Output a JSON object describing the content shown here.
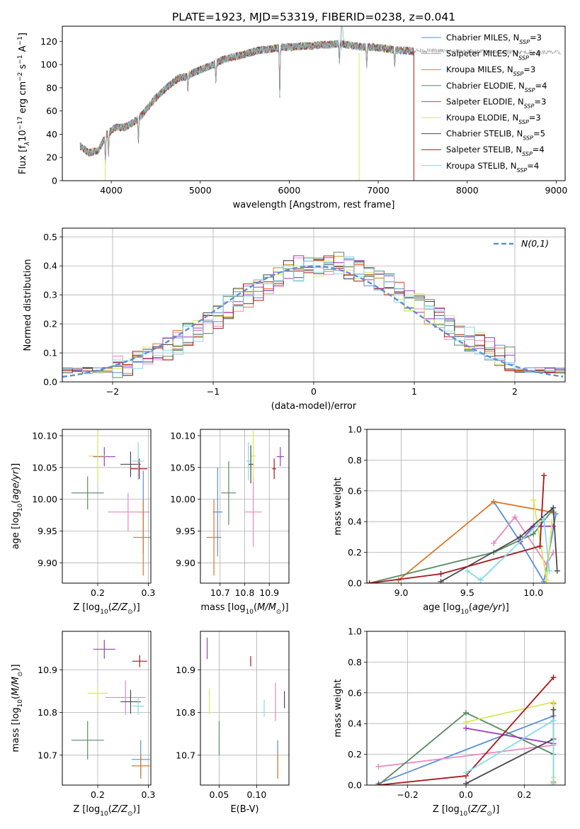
{
  "figure_title": "PLATE=1923, MJD=53319, FIBERID=0238, z=0.041",
  "colors": {
    "Chabrier MILES": "#5b8fd6",
    "Salpeter MILES": "#e889c0",
    "Kroupa MILES": "#d9782a",
    "Chabrier ELODIE": "#5a8a64",
    "Salpeter ELODIE": "#9b3dc0",
    "Kroupa ELODIE": "#d7e85a",
    "Chabrier STELIB": "#4a4a4a",
    "Salpeter STELIB": "#a8181c",
    "Kroupa STELIB": "#86dbe6"
  },
  "legend_models": [
    {
      "key": "Chabrier MILES",
      "label": "Chabrier MILES, N",
      "nssp": "=3"
    },
    {
      "key": "Salpeter MILES",
      "label": "Salpeter MILES, N",
      "nssp": "=4"
    },
    {
      "key": "Kroupa MILES",
      "label": "Kroupa MILES, N",
      "nssp": "=3"
    },
    {
      "key": "Chabrier ELODIE",
      "label": "Chabrier ELODIE, N",
      "nssp": "=4"
    },
    {
      "key": "Salpeter ELODIE",
      "label": "Salpeter ELODIE, N",
      "nssp": "=3"
    },
    {
      "key": "Kroupa ELODIE",
      "label": "Kroupa ELODIE, N",
      "nssp": "=3"
    },
    {
      "key": "Chabrier STELIB",
      "label": "Chabrier STELIB, N",
      "nssp": "=5"
    },
    {
      "key": "Salpeter STELIB",
      "label": "Salpeter STELIB, N",
      "nssp": "=4"
    },
    {
      "key": "Kroupa STELIB",
      "label": "Kroupa STELIB, N",
      "nssp": "=4"
    }
  ],
  "chart_data": [
    {
      "id": "spectrum",
      "type": "line",
      "xlabel": "wavelength [Angstrom, rest frame]",
      "ylabel": "Flux [fλ10⁻¹⁷ erg cm⁻² s⁻¹ A⁻¹]",
      "xlim": [
        3450,
        9100
      ],
      "ylim": [
        0,
        133
      ],
      "xticks": [
        4000,
        5000,
        6000,
        7000,
        8000,
        9000
      ],
      "yticks": [
        0,
        20,
        40,
        60,
        80,
        100,
        120
      ],
      "grid": false,
      "legend": "upper right",
      "continuum": [
        [
          3650,
          30
        ],
        [
          3750,
          24
        ],
        [
          3850,
          26
        ],
        [
          3950,
          40
        ],
        [
          4050,
          46
        ],
        [
          4150,
          46
        ],
        [
          4250,
          50
        ],
        [
          4350,
          57
        ],
        [
          4450,
          67
        ],
        [
          4550,
          75
        ],
        [
          4650,
          82
        ],
        [
          4750,
          88
        ],
        [
          4850,
          90
        ],
        [
          4950,
          94
        ],
        [
          5050,
          97
        ],
        [
          5150,
          100
        ],
        [
          5250,
          104
        ],
        [
          5350,
          106
        ],
        [
          5450,
          108
        ],
        [
          5550,
          110
        ],
        [
          5650,
          112
        ],
        [
          5750,
          113
        ],
        [
          5850,
          114
        ],
        [
          5950,
          115
        ],
        [
          6050,
          115
        ],
        [
          6150,
          116
        ],
        [
          6250,
          116
        ],
        [
          6350,
          117
        ],
        [
          6450,
          117
        ],
        [
          6550,
          118
        ],
        [
          6650,
          117
        ],
        [
          6750,
          116
        ],
        [
          6850,
          115
        ],
        [
          6950,
          115
        ],
        [
          7050,
          114
        ],
        [
          7150,
          113
        ],
        [
          7250,
          112
        ],
        [
          7350,
          112
        ],
        [
          7400,
          111
        ]
      ],
      "absorption_features": [
        {
          "x": 3934,
          "y": 16
        },
        {
          "x": 3969,
          "y": 22
        },
        {
          "x": 4305,
          "y": 34
        },
        {
          "x": 4861,
          "y": 79
        },
        {
          "x": 5175,
          "y": 86
        },
        {
          "x": 5893,
          "y": 72
        },
        {
          "x": 6563,
          "y": 101
        },
        {
          "x": 6870,
          "y": 98
        },
        {
          "x": 7185,
          "y": 100
        }
      ],
      "spikes": [
        {
          "x": 3932,
          "y1": 0,
          "y2": 18,
          "model": "Kroupa ELODIE"
        },
        {
          "x": 6785,
          "y1": 0,
          "y2": 110,
          "model": "Kroupa ELODIE"
        },
        {
          "x": 7400,
          "y1": 0,
          "y2": 112,
          "model": "Salpeter STELIB"
        },
        {
          "x": 6590,
          "y1": 112,
          "y2": 135,
          "model": "Kroupa STELIB"
        }
      ]
    },
    {
      "id": "residuals",
      "type": "histogram",
      "xlabel": "(data-model)/error",
      "ylabel": "Normed distribution",
      "xlim": [
        -2.5,
        2.5
      ],
      "ylim": [
        0,
        0.53
      ],
      "xticks": [
        -2,
        -1,
        0,
        1,
        2
      ],
      "yticks": [
        0.0,
        0.1,
        0.2,
        0.3,
        0.4,
        0.5
      ],
      "grid": true,
      "legend": "upper right",
      "legend_label": "N(0,1)",
      "bin_width": 0.1
    },
    {
      "id": "age_vs_Z",
      "type": "errorbar",
      "xlabel": "Z [log10(Z/Z⊙)]",
      "ylabel": "age  [log10(age/yr)]",
      "xlim": [
        0.13,
        0.305
      ],
      "ylim": [
        9.868,
        10.11
      ],
      "xticks": [
        0.2,
        0.3
      ],
      "yticks": [
        9.9,
        9.95,
        10.0,
        10.05,
        10.1
      ],
      "grid": true,
      "points": [
        {
          "model": "Chabrier MILES",
          "x": 0.29,
          "xerr": 0.012,
          "y": 9.98,
          "yerr": 0.065
        },
        {
          "model": "Salpeter MILES",
          "x": 0.26,
          "xerr": 0.04,
          "y": 9.98,
          "yerr": 0.03
        },
        {
          "model": "Kroupa MILES",
          "x": 0.29,
          "xerr": 0.02,
          "y": 9.94,
          "yerr": 0.06
        },
        {
          "model": "Chabrier ELODIE",
          "x": 0.18,
          "xerr": 0.032,
          "y": 10.01,
          "yerr": 0.026
        },
        {
          "model": "Salpeter ELODIE",
          "x": 0.213,
          "xerr": 0.022,
          "y": 10.067,
          "yerr": 0.015
        },
        {
          "model": "Kroupa ELODIE",
          "x": 0.2,
          "xerr": 0.018,
          "y": 10.068,
          "yerr": 0.04
        },
        {
          "model": "Chabrier STELIB",
          "x": 0.265,
          "xerr": 0.02,
          "y": 10.055,
          "yerr": 0.02
        },
        {
          "model": "Salpeter STELIB",
          "x": 0.282,
          "xerr": 0.016,
          "y": 10.048,
          "yerr": 0.016
        },
        {
          "model": "Kroupa STELIB",
          "x": 0.28,
          "xerr": 0.012,
          "y": 10.06,
          "yerr": 0.03
        }
      ]
    },
    {
      "id": "age_vs_mass",
      "type": "errorbar",
      "xlabel": "mass [log10(M/M⊙)]",
      "ylabel": "",
      "xlim": [
        10.62,
        10.98
      ],
      "ylim": [
        9.868,
        10.11
      ],
      "xticks": [
        10.7,
        10.8,
        10.9
      ],
      "yticks": [
        9.9,
        9.95,
        10.0,
        10.05,
        10.1
      ],
      "grid": true,
      "points": [
        {
          "model": "Chabrier MILES",
          "x": 10.69,
          "xerr": 0.02,
          "y": 9.98,
          "yerr": 0.07
        },
        {
          "model": "Salpeter MILES",
          "x": 10.835,
          "xerr": 0.035,
          "y": 9.98,
          "yerr": 0.055
        },
        {
          "model": "Kroupa MILES",
          "x": 10.675,
          "xerr": 0.03,
          "y": 9.94,
          "yerr": 0.06
        },
        {
          "model": "Chabrier ELODIE",
          "x": 10.735,
          "xerr": 0.03,
          "y": 10.01,
          "yerr": 0.05
        },
        {
          "model": "Salpeter ELODIE",
          "x": 10.945,
          "xerr": 0.015,
          "y": 10.067,
          "yerr": 0.015
        },
        {
          "model": "Kroupa ELODIE",
          "x": 10.835,
          "xerr": 0.01,
          "y": 10.068,
          "yerr": 0.04
        },
        {
          "model": "Chabrier STELIB",
          "x": 10.825,
          "xerr": 0.01,
          "y": 10.055,
          "yerr": 0.03
        },
        {
          "model": "Salpeter STELIB",
          "x": 10.92,
          "xerr": 0.008,
          "y": 10.048,
          "yerr": 0.016
        },
        {
          "model": "Kroupa STELIB",
          "x": 10.815,
          "xerr": 0.008,
          "y": 10.06,
          "yerr": 0.03
        }
      ]
    },
    {
      "id": "weight_vs_age",
      "type": "line",
      "xlabel": "age  [log10(age/yr)]",
      "ylabel": "mass weight",
      "xlim": [
        8.74,
        10.24
      ],
      "ylim": [
        0,
        1
      ],
      "xticks": [
        9.0,
        9.5,
        10.0
      ],
      "yticks": [
        0.0,
        0.2,
        0.4,
        0.6,
        0.8,
        1.0
      ],
      "grid": true,
      "series": [
        {
          "model": "Chabrier MILES",
          "x": [
            9.7,
            9.9,
            10.08,
            10.17
          ],
          "y": [
            0.53,
            0.27,
            0.01,
            0.45
          ]
        },
        {
          "model": "Salpeter MILES",
          "x": [
            9.7,
            9.86,
            10.1,
            10.15
          ],
          "y": [
            0.26,
            0.43,
            0.12,
            0.2
          ]
        },
        {
          "model": "Kroupa MILES",
          "x": [
            8.98,
            9.7,
            10.15
          ],
          "y": [
            0.02,
            0.53,
            0.46
          ]
        },
        {
          "model": "Chabrier ELODIE",
          "x": [
            8.76,
            9.7,
            10.0,
            10.14
          ],
          "y": [
            0.0,
            0.2,
            0.32,
            0.47
          ]
        },
        {
          "model": "Salpeter ELODIE",
          "x": [
            9.9,
            10.0,
            10.15
          ],
          "y": [
            0.27,
            0.37,
            0.37
          ]
        },
        {
          "model": "Kroupa ELODIE",
          "x": [
            10.0,
            10.1,
            10.14
          ],
          "y": [
            0.54,
            0.02,
            0.4
          ]
        },
        {
          "model": "Chabrier STELIB",
          "x": [
            9.3,
            9.9,
            10.15,
            10.18
          ],
          "y": [
            0.01,
            0.3,
            0.49,
            0.08
          ]
        },
        {
          "model": "Salpeter STELIB",
          "x": [
            8.76,
            9.3,
            10.05,
            10.08
          ],
          "y": [
            0.0,
            0.06,
            0.24,
            0.7
          ]
        },
        {
          "model": "Kroupa STELIB",
          "x": [
            9.5,
            9.6,
            10.08,
            10.12
          ],
          "y": [
            0.08,
            0.02,
            0.42,
            0.08
          ]
        }
      ]
    },
    {
      "id": "mass_vs_Z",
      "type": "errorbar",
      "xlabel": "Z [log10(Z/Z⊙)]",
      "ylabel": "mass [log10(M/M⊙)]",
      "xlim": [
        0.13,
        0.305
      ],
      "ylim": [
        10.63,
        10.99
      ],
      "xticks": [
        0.2,
        0.3
      ],
      "yticks": [
        10.7,
        10.8,
        10.9
      ],
      "grid": true,
      "points": [
        {
          "model": "Chabrier MILES",
          "x": 0.285,
          "xerr": 0.018,
          "y": 10.69,
          "yerr": 0.045
        },
        {
          "model": "Salpeter MILES",
          "x": 0.255,
          "xerr": 0.04,
          "y": 10.835,
          "yerr": 0.04
        },
        {
          "model": "Kroupa MILES",
          "x": 0.285,
          "xerr": 0.018,
          "y": 10.675,
          "yerr": 0.028
        },
        {
          "model": "Chabrier ELODIE",
          "x": 0.18,
          "xerr": 0.032,
          "y": 10.735,
          "yerr": 0.045
        },
        {
          "model": "Salpeter ELODIE",
          "x": 0.213,
          "xerr": 0.022,
          "y": 10.948,
          "yerr": 0.022
        },
        {
          "model": "Kroupa ELODIE",
          "x": 0.2,
          "xerr": 0.02,
          "y": 10.845,
          "yerr": 0.018
        },
        {
          "model": "Chabrier STELIB",
          "x": 0.265,
          "xerr": 0.02,
          "y": 10.825,
          "yerr": 0.028
        },
        {
          "model": "Salpeter STELIB",
          "x": 0.283,
          "xerr": 0.015,
          "y": 10.92,
          "yerr": 0.014
        },
        {
          "model": "Kroupa STELIB",
          "x": 0.28,
          "xerr": 0.012,
          "y": 10.815,
          "yerr": 0.02
        }
      ]
    },
    {
      "id": "mass_vs_ebv",
      "type": "errorbar",
      "xlabel": "E(B-V)",
      "ylabel": "",
      "xlim": [
        0.025,
        0.143
      ],
      "ylim": [
        10.63,
        10.99
      ],
      "xticks": [
        0.05,
        0.1
      ],
      "yticks": [
        10.7,
        10.8,
        10.9
      ],
      "grid": true,
      "points": [
        {
          "model": "Chabrier MILES",
          "x": 0.128,
          "y": 10.69,
          "yerr": 0.045
        },
        {
          "model": "Salpeter MILES",
          "x": 0.125,
          "y": 10.825,
          "yerr": 0.045
        },
        {
          "model": "Kroupa MILES",
          "x": 0.128,
          "y": 10.675,
          "yerr": 0.03
        },
        {
          "model": "Chabrier ELODIE",
          "x": 0.05,
          "y": 10.74,
          "yerr": 0.04
        },
        {
          "model": "Salpeter ELODIE",
          "x": 0.034,
          "y": 10.95,
          "yerr": 0.025
        },
        {
          "model": "Kroupa ELODIE",
          "x": 0.037,
          "y": 10.825,
          "yerr": 0.03
        },
        {
          "model": "Chabrier STELIB",
          "x": 0.137,
          "y": 10.83,
          "yerr": 0.02
        },
        {
          "model": "Salpeter STELIB",
          "x": 0.092,
          "y": 10.92,
          "yerr": 0.012
        },
        {
          "model": "Kroupa STELIB",
          "x": 0.11,
          "y": 10.81,
          "yerr": 0.02
        }
      ]
    },
    {
      "id": "weight_vs_Z",
      "type": "line",
      "xlabel": "Z [log10(Z/Z⊙)]",
      "ylabel": "mass weight",
      "xlim": [
        -0.34,
        0.34
      ],
      "ylim": [
        0,
        1
      ],
      "xticks": [
        -0.2,
        0.0,
        0.2
      ],
      "yticks": [
        0.0,
        0.2,
        0.4,
        0.6,
        0.8,
        1.0
      ],
      "grid": true,
      "series": [
        {
          "model": "Chabrier MILES",
          "x": [
            -0.3,
            0.3
          ],
          "y": [
            0.01,
            0.45
          ]
        },
        {
          "model": "Salpeter MILES",
          "x": [
            -0.3,
            0.3
          ],
          "y": [
            0.12,
            0.26
          ]
        },
        {
          "model": "Kroupa MILES",
          "x": [
            0.3,
            0.3
          ],
          "y": [
            0.53,
            0.02
          ]
        },
        {
          "model": "Chabrier ELODIE",
          "x": [
            -0.3,
            0.0,
            0.3
          ],
          "y": [
            0.0,
            0.47,
            0.2
          ]
        },
        {
          "model": "Salpeter ELODIE",
          "x": [
            0.0,
            0.3
          ],
          "y": [
            0.37,
            0.27
          ]
        },
        {
          "model": "Kroupa ELODIE",
          "x": [
            0.0,
            0.3,
            0.3
          ],
          "y": [
            0.41,
            0.54,
            0.05
          ]
        },
        {
          "model": "Chabrier STELIB",
          "x": [
            0.0,
            0.3,
            0.3
          ],
          "y": [
            0.01,
            0.3,
            0.49
          ]
        },
        {
          "model": "Salpeter STELIB",
          "x": [
            -0.3,
            0.0,
            0.3
          ],
          "y": [
            0.0,
            0.06,
            0.7
          ]
        },
        {
          "model": "Kroupa STELIB",
          "x": [
            0.0,
            0.3,
            0.3
          ],
          "y": [
            0.08,
            0.42,
            0.01
          ]
        }
      ]
    }
  ]
}
